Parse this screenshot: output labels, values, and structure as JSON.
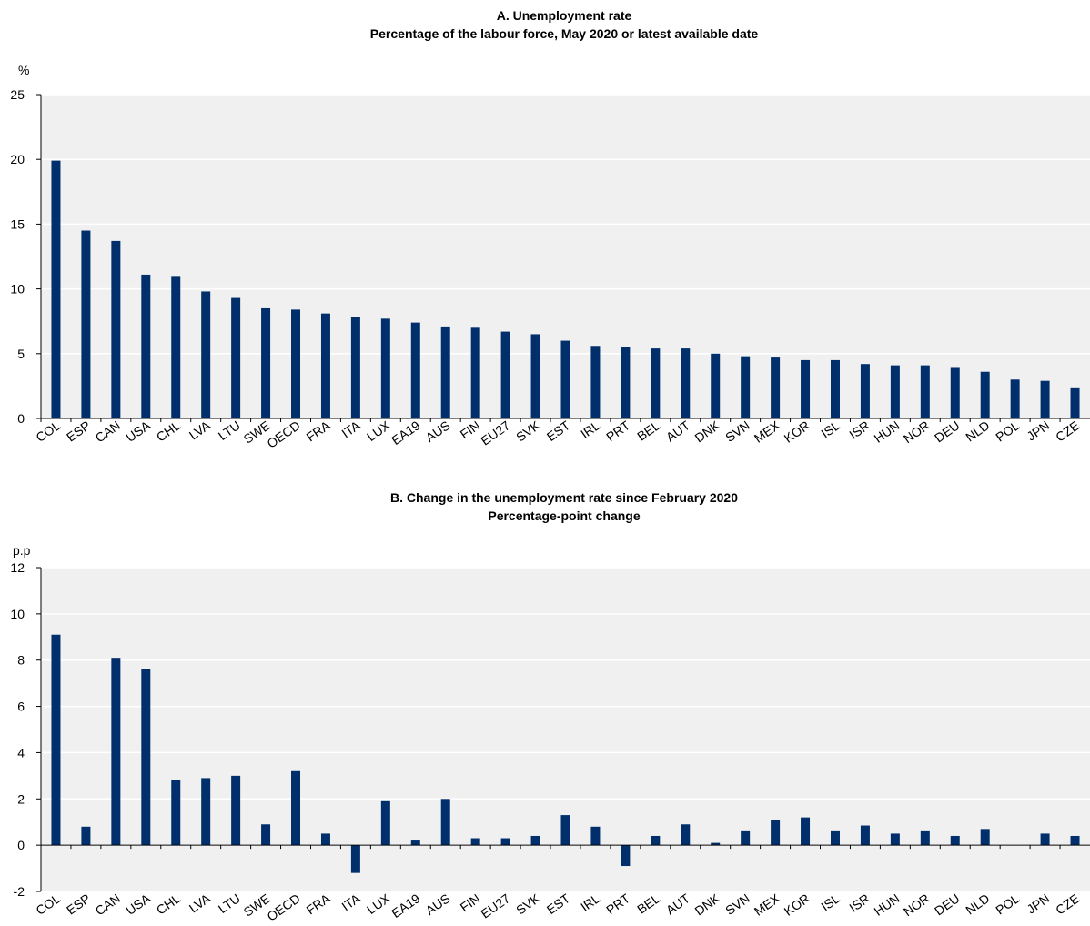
{
  "chart_data": [
    {
      "type": "bar",
      "title": "A. Unemployment rate",
      "subtitle": "Percentage of the labour force, May 2020 or latest available date",
      "ylabel": "%",
      "xlabel": "",
      "ylim": [
        0,
        25
      ],
      "yticks": [
        0,
        5,
        10,
        15,
        20,
        25
      ],
      "grid": true,
      "bar_color": "#002f6c",
      "background_color": "#f0f0f0",
      "categories": [
        "COL",
        "ESP",
        "CAN",
        "USA",
        "CHL",
        "LVA",
        "LTU",
        "SWE",
        "OECD",
        "FRA",
        "ITA",
        "LUX",
        "EA19",
        "AUS",
        "FIN",
        "EU27",
        "SVK",
        "EST",
        "IRL",
        "PRT",
        "BEL",
        "AUT",
        "DNK",
        "SVN",
        "MEX",
        "KOR",
        "ISL",
        "ISR",
        "HUN",
        "NOR",
        "DEU",
        "NLD",
        "POL",
        "JPN",
        "CZE"
      ],
      "values": [
        19.9,
        14.5,
        13.7,
        11.1,
        11.0,
        9.8,
        9.3,
        8.5,
        8.4,
        8.1,
        7.8,
        7.7,
        7.4,
        7.1,
        7.0,
        6.7,
        6.5,
        6.0,
        5.6,
        5.5,
        5.4,
        5.4,
        5.0,
        4.8,
        4.7,
        4.5,
        4.5,
        4.2,
        4.1,
        4.1,
        3.9,
        3.6,
        3.0,
        2.9,
        2.4
      ]
    },
    {
      "type": "bar",
      "title": "B. Change in the unemployment rate since February 2020",
      "subtitle": "Percentage-point change",
      "ylabel": "p.p",
      "xlabel": "",
      "ylim": [
        -2,
        12
      ],
      "yticks": [
        -2,
        0,
        2,
        4,
        6,
        8,
        10,
        12
      ],
      "grid": true,
      "bar_color": "#002f6c",
      "background_color": "#f0f0f0",
      "categories": [
        "COL",
        "ESP",
        "CAN",
        "USA",
        "CHL",
        "LVA",
        "LTU",
        "SWE",
        "OECD",
        "FRA",
        "ITA",
        "LUX",
        "EA19",
        "AUS",
        "FIN",
        "EU27",
        "SVK",
        "EST",
        "IRL",
        "PRT",
        "BEL",
        "AUT",
        "DNK",
        "SVN",
        "MEX",
        "KOR",
        "ISL",
        "ISR",
        "HUN",
        "NOR",
        "DEU",
        "NLD",
        "POL",
        "JPN",
        "CZE"
      ],
      "values": [
        9.1,
        0.8,
        8.1,
        7.6,
        2.8,
        2.9,
        3.0,
        0.9,
        3.2,
        0.5,
        -1.2,
        1.9,
        0.2,
        2.0,
        0.3,
        0.3,
        0.4,
        1.3,
        0.8,
        -0.9,
        0.4,
        0.9,
        0.1,
        0.6,
        1.1,
        1.2,
        0.6,
        0.85,
        0.5,
        0.6,
        0.4,
        0.7,
        0.0,
        0.5,
        0.4
      ]
    }
  ]
}
